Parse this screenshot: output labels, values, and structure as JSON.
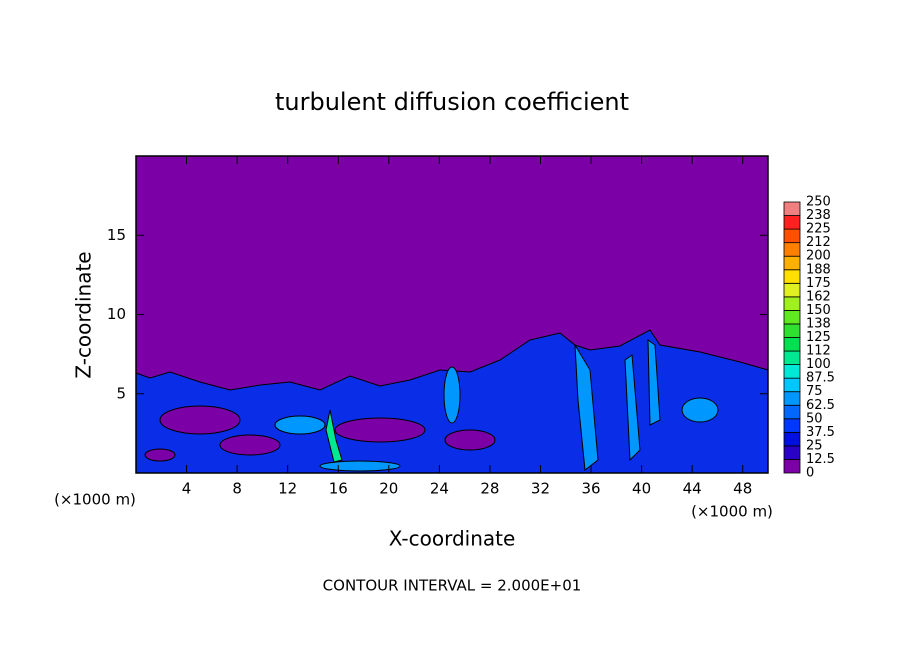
{
  "chart_data": {
    "type": "contour",
    "title": "turbulent diffusion coefficient",
    "x_label": "X-coordinate",
    "y_label": "Z-coordinate",
    "x_unit": "(×1000 m)",
    "y_unit": "(×1000 m)",
    "footer": "CONTOUR INTERVAL = 2.000E+01",
    "xlim": [
      0,
      50
    ],
    "xticks": [
      4,
      8,
      12,
      16,
      20,
      24,
      28,
      32,
      36,
      40,
      44,
      48
    ],
    "ylim": [
      0,
      20
    ],
    "yticks": [
      5,
      10,
      15
    ],
    "colorbar": {
      "levels": [
        0,
        12.5,
        25,
        37.5,
        50,
        62.5,
        75,
        87.5,
        100,
        112,
        125,
        138,
        150,
        162,
        175,
        188,
        200,
        212,
        225,
        238,
        250
      ],
      "colors": [
        "#7b00a6",
        "#2800c8",
        "#0010e0",
        "#0038ff",
        "#0068ff",
        "#0098ff",
        "#00c8ff",
        "#00e8d8",
        "#00e890",
        "#00e050",
        "#30e030",
        "#60e820",
        "#a0f020",
        "#e0f020",
        "#ffe000",
        "#ffb000",
        "#ff8000",
        "#ff5000",
        "#ff2020",
        "#f08080"
      ]
    }
  }
}
